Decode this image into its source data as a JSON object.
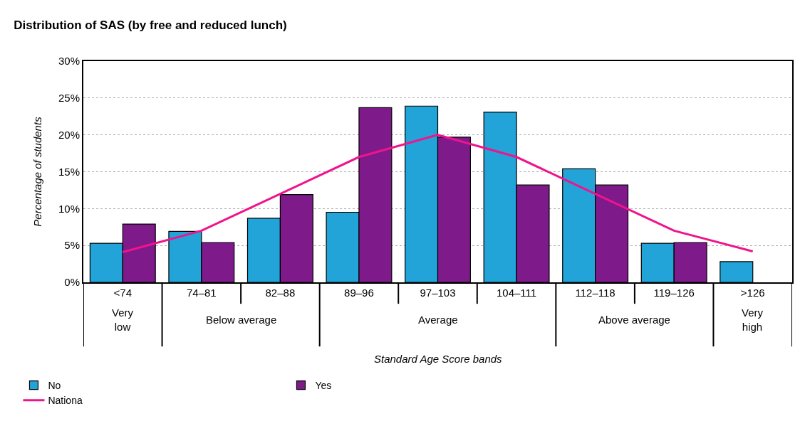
{
  "chart_data": {
    "type": "bar",
    "title": "Distribution of SAS (by free and reduced lunch)",
    "ylabel": "Percentage of students",
    "categories": [
      "<74",
      "74–81",
      "82–88",
      "89–96",
      "97–103",
      "104–111",
      "112–118",
      "119–126",
      ">126"
    ],
    "series": [
      {
        "name": "No",
        "color": "#22a4d8",
        "values": [
          5.3,
          6.9,
          8.7,
          9.5,
          23.9,
          23.1,
          15.4,
          5.3,
          2.8
        ]
      },
      {
        "name": "Yes",
        "color": "#7f1a8a",
        "values": [
          7.9,
          5.4,
          11.9,
          23.7,
          19.7,
          13.2,
          13.2,
          5.4,
          null
        ]
      },
      {
        "name": "Nationa",
        "type": "line",
        "color": "#f0148c",
        "values": [
          4.1,
          7,
          12,
          17,
          20,
          17,
          12,
          7,
          4.2
        ]
      }
    ],
    "annotations": [
      "Very low",
      "Below average",
      "Average",
      "Above average",
      "Very high",
      "Standard Age Score bands"
    ],
    "ylim": [
      0,
      30
    ],
    "yticks": [
      {
        "value": 0,
        "label": "0%"
      },
      {
        "value": 5,
        "label": "5%"
      },
      {
        "value": 10,
        "label": "10%"
      },
      {
        "value": 15,
        "label": "15%"
      },
      {
        "value": 20,
        "label": "20%"
      },
      {
        "value": 25,
        "label": "25%"
      },
      {
        "value": 30,
        "label": "30%"
      }
    ],
    "grid": "y",
    "legend": "bottom",
    "marker": "none",
    "line_style": "solid"
  }
}
